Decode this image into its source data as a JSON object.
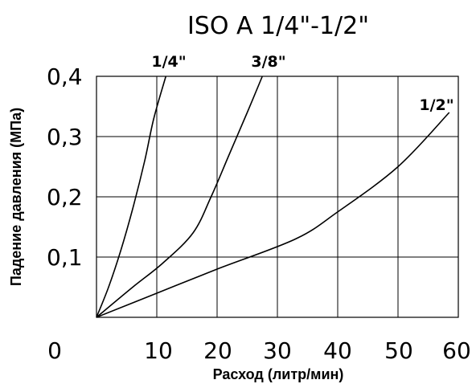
{
  "chart_data": {
    "type": "line",
    "title": "ISO A 1/4\"-1/2\"",
    "xlabel": "Расход (литр/мин)",
    "ylabel": "Падение давления (МПа)",
    "xlim": [
      0,
      60
    ],
    "ylim": [
      0,
      0.4
    ],
    "grid": true,
    "x_tick_labels": [
      "0",
      "10",
      "20",
      "30",
      "40",
      "50",
      "60"
    ],
    "y_tick_labels": [
      "0,1",
      "0,2",
      "0,3",
      "0,4"
    ],
    "series": [
      {
        "name": "1/4\"",
        "points": [
          [
            0,
            0
          ],
          [
            2,
            0.05
          ],
          [
            4,
            0.11
          ],
          [
            6,
            0.18
          ],
          [
            8,
            0.26
          ],
          [
            9.5,
            0.33
          ],
          [
            11.5,
            0.4
          ]
        ]
      },
      {
        "name": "3/8\"",
        "points": [
          [
            0,
            0
          ],
          [
            6,
            0.05
          ],
          [
            11,
            0.09
          ],
          [
            16,
            0.14
          ],
          [
            19,
            0.2
          ],
          [
            22,
            0.27
          ],
          [
            25,
            0.34
          ],
          [
            27.5,
            0.4
          ]
        ]
      },
      {
        "name": "1/2\"",
        "points": [
          [
            0,
            0
          ],
          [
            10,
            0.04
          ],
          [
            20,
            0.08
          ],
          [
            33,
            0.13
          ],
          [
            40,
            0.175
          ],
          [
            50,
            0.25
          ],
          [
            58.5,
            0.34
          ]
        ]
      }
    ]
  }
}
